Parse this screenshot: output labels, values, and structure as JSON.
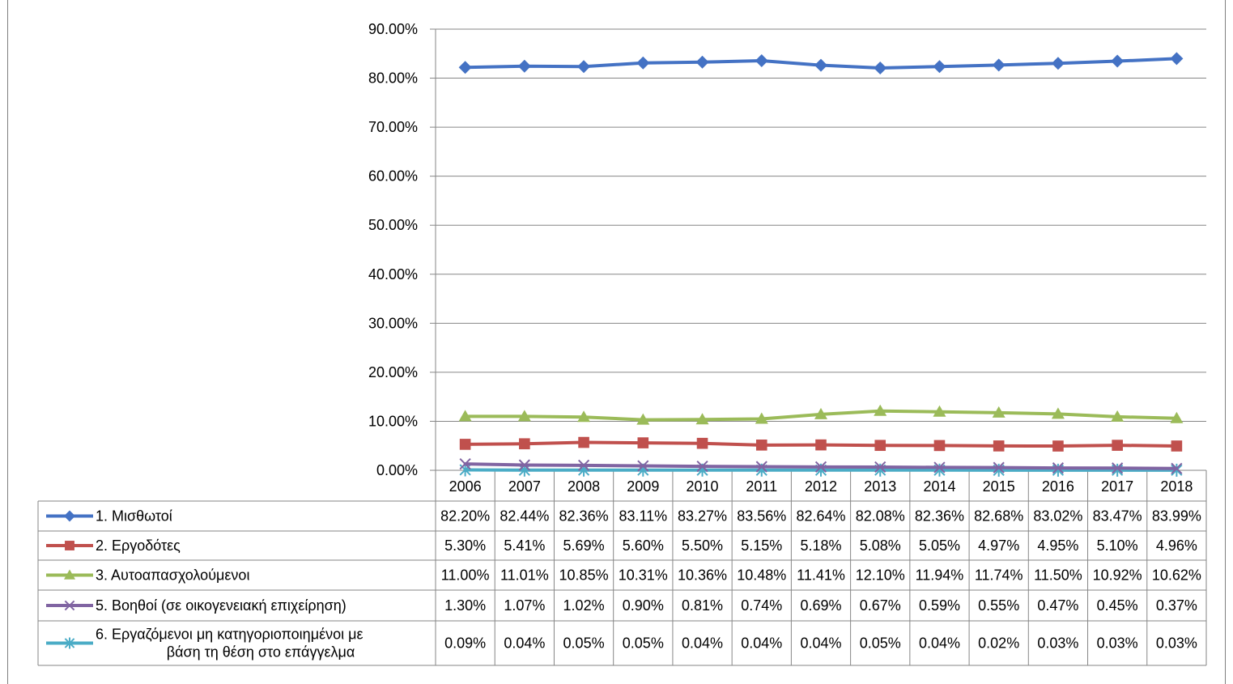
{
  "chart_data": {
    "type": "line",
    "title": "",
    "xlabel": "",
    "ylabel": "",
    "ylim": [
      0,
      90
    ],
    "y_ticks": [
      "0.00%",
      "10.00%",
      "20.00%",
      "30.00%",
      "40.00%",
      "50.00%",
      "60.00%",
      "70.00%",
      "80.00%",
      "90.00%"
    ],
    "y_tick_values": [
      0,
      10,
      20,
      30,
      40,
      50,
      60,
      70,
      80,
      90
    ],
    "grid": true,
    "legend": "data-table",
    "categories": [
      "2006",
      "2007",
      "2008",
      "2009",
      "2010",
      "2011",
      "2012",
      "2013",
      "2014",
      "2015",
      "2016",
      "2017",
      "2018"
    ],
    "series": [
      {
        "name": "1. Μισθωτοί",
        "color": "#4472C4",
        "marker": "diamond",
        "values": [
          82.2,
          82.44,
          82.36,
          83.11,
          83.27,
          83.56,
          82.64,
          82.08,
          82.36,
          82.68,
          83.02,
          83.47,
          83.99
        ],
        "labels": [
          "82.20%",
          "82.44%",
          "82.36%",
          "83.11%",
          "83.27%",
          "83.56%",
          "82.64%",
          "82.08%",
          "82.36%",
          "82.68%",
          "83.02%",
          "83.47%",
          "83.99%"
        ]
      },
      {
        "name": "2. Εργοδότες",
        "color": "#C0504D",
        "marker": "square",
        "values": [
          5.3,
          5.41,
          5.69,
          5.6,
          5.5,
          5.15,
          5.18,
          5.08,
          5.05,
          4.97,
          4.95,
          5.1,
          4.96
        ],
        "labels": [
          "5.30%",
          "5.41%",
          "5.69%",
          "5.60%",
          "5.50%",
          "5.15%",
          "5.18%",
          "5.08%",
          "5.05%",
          "4.97%",
          "4.95%",
          "5.10%",
          "4.96%"
        ]
      },
      {
        "name": "3. Αυτοαπασχολούμενοι",
        "color": "#9BBB59",
        "marker": "triangle",
        "values": [
          11.0,
          11.01,
          10.85,
          10.31,
          10.36,
          10.48,
          11.41,
          12.1,
          11.94,
          11.74,
          11.5,
          10.92,
          10.62
        ],
        "labels": [
          "11.00%",
          "11.01%",
          "10.85%",
          "10.31%",
          "10.36%",
          "10.48%",
          "11.41%",
          "12.10%",
          "11.94%",
          "11.74%",
          "11.50%",
          "10.92%",
          "10.62%"
        ]
      },
      {
        "name": "5. Βοηθοί (σε οικογενειακή επιχείρηση)",
        "color": "#8064A2",
        "marker": "x",
        "values": [
          1.3,
          1.07,
          1.02,
          0.9,
          0.81,
          0.74,
          0.69,
          0.67,
          0.59,
          0.55,
          0.47,
          0.45,
          0.37
        ],
        "labels": [
          "1.30%",
          "1.07%",
          "1.02%",
          "0.90%",
          "0.81%",
          "0.74%",
          "0.69%",
          "0.67%",
          "0.59%",
          "0.55%",
          "0.47%",
          "0.45%",
          "0.37%"
        ]
      },
      {
        "name": "6. Εργαζόμενοι μη κατηγοριοποιημένοι με βάση τη θέση στο επάγγελμα",
        "name_lines": [
          "6. Εργαζόμενοι μη κατηγοριοποιημένοι με",
          "βάση τη θέση στο επάγγελμα"
        ],
        "color": "#4BACC6",
        "marker": "star",
        "values": [
          0.09,
          0.04,
          0.05,
          0.05,
          0.04,
          0.04,
          0.04,
          0.05,
          0.04,
          0.02,
          0.03,
          0.03,
          0.03
        ],
        "labels": [
          "0.09%",
          "0.04%",
          "0.05%",
          "0.05%",
          "0.04%",
          "0.04%",
          "0.04%",
          "0.05%",
          "0.04%",
          "0.02%",
          "0.03%",
          "0.03%",
          "0.03%"
        ]
      }
    ]
  }
}
